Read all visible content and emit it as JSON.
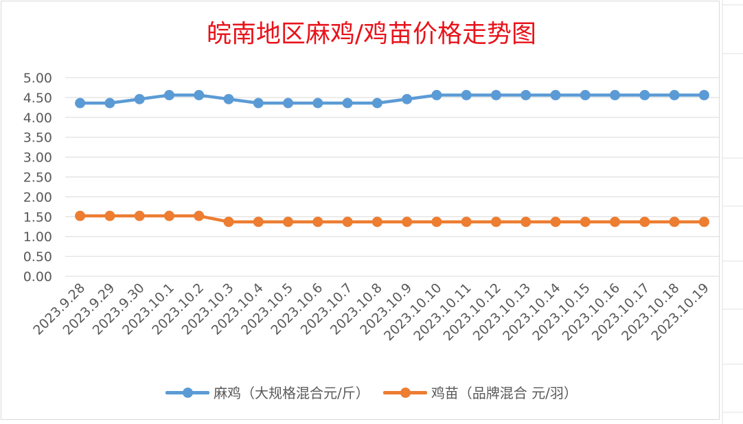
{
  "chart_data": {
    "type": "line",
    "title": "皖南地区麻鸡/鸡苗价格走势图",
    "title_color": "#e8131b",
    "categories": [
      "2023.9.28",
      "2023.9.29",
      "2023.9.30",
      "2023.10.1",
      "2023.10.2",
      "2023.10.3",
      "2023.10.4",
      "2023.10.5",
      "2023.10.6",
      "2023.10.7",
      "2023.10.8",
      "2023.10.9",
      "2023.10.10",
      "2023.10.11",
      "2023.10.12",
      "2023.10.13",
      "2023.10.14",
      "2023.10.15",
      "2023.10.16",
      "2023.10.17",
      "2023.10.18",
      "2023.10.19"
    ],
    "series": [
      {
        "name": "麻鸡（大规格混合元/斤）",
        "color": "#5b9bd5",
        "values": [
          4.36,
          4.36,
          4.46,
          4.56,
          4.56,
          4.46,
          4.36,
          4.36,
          4.36,
          4.36,
          4.36,
          4.46,
          4.56,
          4.56,
          4.56,
          4.56,
          4.56,
          4.56,
          4.56,
          4.56,
          4.56,
          4.56
        ]
      },
      {
        "name": "鸡苗（品牌混合 元/羽）",
        "color": "#ed7d31",
        "values": [
          1.52,
          1.52,
          1.52,
          1.52,
          1.52,
          1.37,
          1.37,
          1.37,
          1.37,
          1.37,
          1.37,
          1.37,
          1.37,
          1.37,
          1.37,
          1.37,
          1.37,
          1.37,
          1.37,
          1.37,
          1.37,
          1.37
        ]
      }
    ],
    "ylim": [
      0,
      5
    ],
    "ytick_step": 0.5,
    "yticks": [
      "0.00",
      "0.50",
      "1.00",
      "1.50",
      "2.00",
      "2.50",
      "3.00",
      "3.50",
      "4.00",
      "4.50",
      "5.00"
    ],
    "xlabel": "",
    "ylabel": "",
    "grid": true,
    "legend_position": "bottom"
  }
}
